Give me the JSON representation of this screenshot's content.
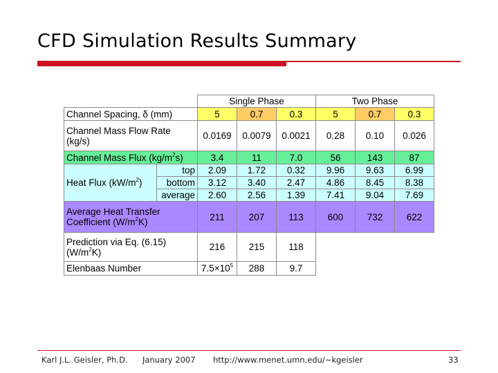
{
  "slide": {
    "title": "CFD Simulation Results Summary"
  },
  "colors": {
    "accent_red": "#cc1122",
    "spacing_yellow": "#ffff66",
    "spacing_orange": "#ffcc66",
    "mass_flux_green": "#66ee99",
    "heat_flux_cyan": "#ccffff",
    "htc_purple": "#aa88ff"
  },
  "table": {
    "group_headers": {
      "single": "Single Phase",
      "two": "Two Phase"
    },
    "spacing": {
      "label": "Channel Spacing, δ (mm)",
      "values": [
        "5",
        "0.7",
        "0.3",
        "5",
        "0.7",
        "0.3"
      ]
    },
    "mass_flow": {
      "label_line1": "Channel Mass Flow Rate",
      "label_line2": "(kg/s)",
      "values": [
        "0.0169",
        "0.0079",
        "0.0021",
        "0.28",
        "0.10",
        "0.026"
      ]
    },
    "mass_flux": {
      "label_pre": "Channel Mass Flux (kg/m",
      "sup": "2",
      "label_post": "s)",
      "values": [
        "3.4",
        "11",
        "7.0",
        "56",
        "143",
        "87"
      ]
    },
    "heat_flux": {
      "label_pre": "Heat Flux (kW/m",
      "sup": "2",
      "label_post": ")",
      "rows": [
        {
          "label": "top",
          "values": [
            "2.09",
            "1.72",
            "0.32",
            "9.96",
            "9.63",
            "6.99"
          ]
        },
        {
          "label": "bottom",
          "values": [
            "3.12",
            "3.40",
            "2.47",
            "4.86",
            "8.45",
            "8.38"
          ]
        },
        {
          "label": "average",
          "values": [
            "2.60",
            "2.56",
            "1.39",
            "7.41",
            "9.04",
            "7.69"
          ]
        }
      ]
    },
    "htc": {
      "label_line1": "Average Heat Transfer",
      "label_line2_pre": "Coefficient (W/m",
      "sup": "2",
      "label_line2_post": "K)",
      "values": [
        "211",
        "207",
        "113",
        "600",
        "732",
        "622"
      ]
    },
    "prediction": {
      "label_line1": "Prediction via Eq. (6.15)",
      "label_line2_pre": "(W/m",
      "sup": "2",
      "label_line2_post": "K)",
      "values": [
        "216",
        "215",
        "118"
      ]
    },
    "elenbaas": {
      "label": "Elenbaas Number",
      "first_mantissa": "7.5×10",
      "first_exp": "5",
      "values": [
        "288",
        "9.7"
      ]
    }
  },
  "footer": {
    "author": "Karl J.L. Geisler, Ph.D.",
    "date": "January 2007",
    "url": "http://www.menet.umn.edu/~kgeisler",
    "page": "33"
  }
}
